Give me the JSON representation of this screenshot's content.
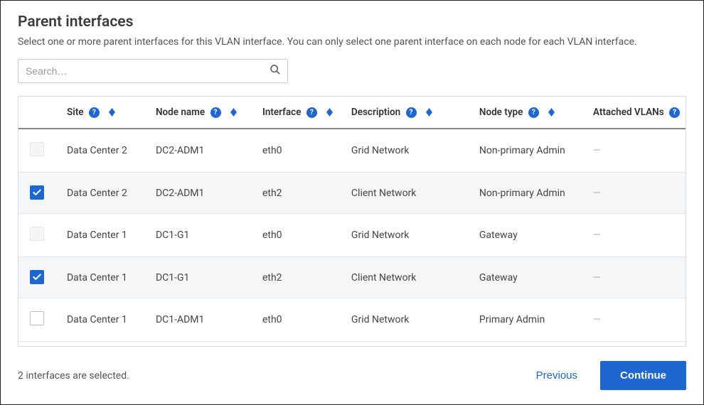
{
  "title": "Parent interfaces",
  "subtitle": "Select one or more parent interfaces for this VLAN interface. You can only select one parent interface on each node for each VLAN interface.",
  "search": {
    "placeholder": "Search…"
  },
  "columns": {
    "site": "Site",
    "node_name": "Node name",
    "interface": "Interface",
    "description": "Description",
    "node_type": "Node type",
    "attached_vlans": "Attached VLANs"
  },
  "rows": [
    {
      "checked": false,
      "enabled": false,
      "site": "Data Center 2",
      "node_name": "DC2-ADM1",
      "interface": "eth0",
      "description": "Grid Network",
      "node_type": "Non-primary Admin",
      "attached_vlans": "—"
    },
    {
      "checked": true,
      "enabled": true,
      "site": "Data Center 2",
      "node_name": "DC2-ADM1",
      "interface": "eth2",
      "description": "Client Network",
      "node_type": "Non-primary Admin",
      "attached_vlans": "—"
    },
    {
      "checked": false,
      "enabled": false,
      "site": "Data Center 1",
      "node_name": "DC1-G1",
      "interface": "eth0",
      "description": "Grid Network",
      "node_type": "Gateway",
      "attached_vlans": "—"
    },
    {
      "checked": true,
      "enabled": true,
      "site": "Data Center 1",
      "node_name": "DC1-G1",
      "interface": "eth2",
      "description": "Client Network",
      "node_type": "Gateway",
      "attached_vlans": "—"
    },
    {
      "checked": false,
      "enabled": true,
      "site": "Data Center 1",
      "node_name": "DC1-ADM1",
      "interface": "eth0",
      "description": "Grid Network",
      "node_type": "Primary Admin",
      "attached_vlans": "—"
    }
  ],
  "footer": {
    "selected_text": "2 interfaces are selected.",
    "previous": "Previous",
    "continue": "Continue"
  },
  "colors": {
    "accent": "#1e66d0",
    "border": "#d9d9d9",
    "row_selected_bg": "#f5f6f7"
  }
}
